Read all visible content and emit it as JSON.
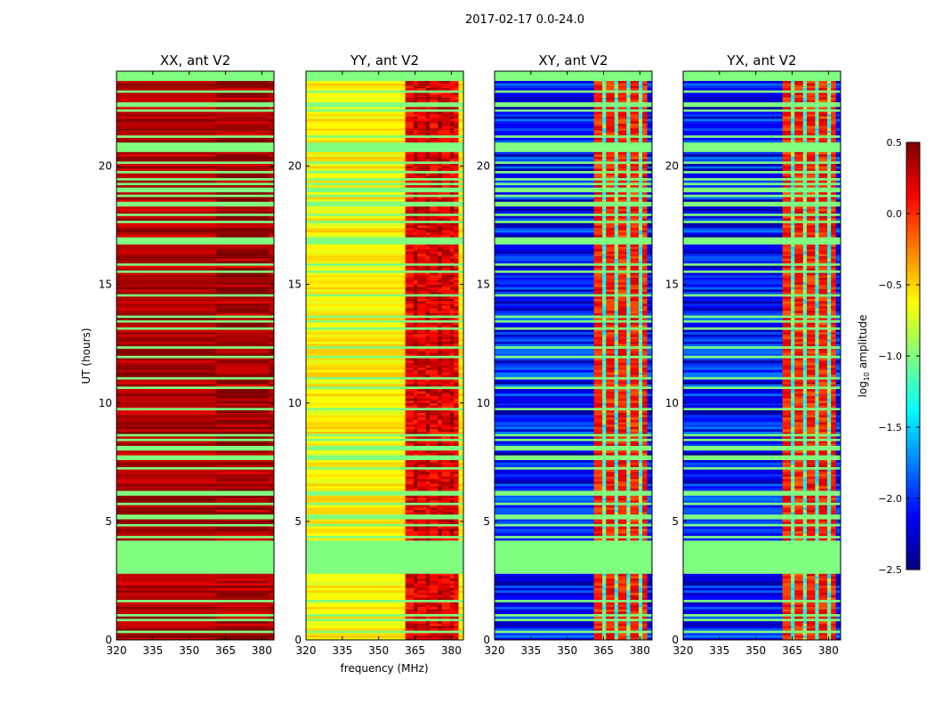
{
  "chart_data": {
    "type": "heatmap",
    "suptitle": "2017-02-17 0.0-24.0",
    "xlabel": "frequency (MHz)",
    "ylabel": "UT (hours)",
    "xlim": [
      320,
      385
    ],
    "ylim": [
      0,
      24
    ],
    "xticks": [
      "320",
      "335",
      "350",
      "365",
      "380"
    ],
    "xtick_values": [
      320,
      335,
      350,
      365,
      380
    ],
    "yticks": [
      "0",
      "5",
      "10",
      "15",
      "20"
    ],
    "ytick_values": [
      0,
      5,
      10,
      15,
      20
    ],
    "colormap": "jet",
    "colorbar": {
      "label": "log10 amplitude",
      "label_main": "log",
      "label_sub": "10",
      "label_rest": " amplitude",
      "vmin": -2.5,
      "vmax": 0.5,
      "ticks": [
        "0.5",
        "0.0",
        "−0.5",
        "−1.0",
        "−1.5",
        "−2.0",
        "−2.5"
      ],
      "tick_values": [
        0.5,
        0.0,
        -0.5,
        -1.0,
        -1.5,
        -2.0,
        -2.5
      ]
    },
    "flag_value": -1.0,
    "flagged_hours": [
      [
        2.8,
        4.2
      ],
      [
        6.1,
        6.3
      ],
      [
        7.6,
        7.7
      ],
      [
        16.8,
        17.0
      ],
      [
        20.6,
        21.0
      ],
      [
        23.6,
        24.0
      ]
    ],
    "rfi_band_mhz": [
      361,
      383
    ],
    "panels": [
      {
        "title": "XX, ant V2",
        "base_level": 0.35,
        "base_spread": 0.15,
        "rfi_level": 0.4,
        "stripes": false
      },
      {
        "title": "YY, ant V2",
        "base_level": -0.6,
        "base_spread": 0.15,
        "rfi_level": 0.2,
        "stripes": true
      },
      {
        "title": "XY, ant V2",
        "base_level": -2.1,
        "base_spread": 0.35,
        "rfi_level": 0.05,
        "stripes": true
      },
      {
        "title": "YX, ant V2",
        "base_level": -2.1,
        "base_spread": 0.35,
        "rfi_level": 0.05,
        "stripes": true
      }
    ]
  }
}
